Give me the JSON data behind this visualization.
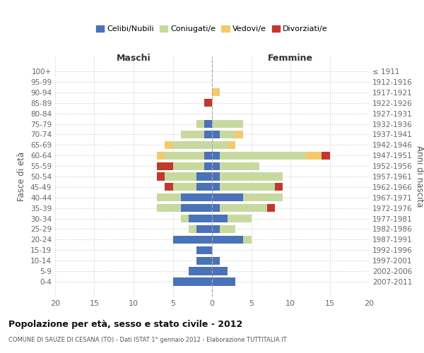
{
  "age_groups": [
    "100+",
    "95-99",
    "90-94",
    "85-89",
    "80-84",
    "75-79",
    "70-74",
    "65-69",
    "60-64",
    "55-59",
    "50-54",
    "45-49",
    "40-44",
    "35-39",
    "30-34",
    "25-29",
    "20-24",
    "15-19",
    "10-14",
    "5-9",
    "0-4"
  ],
  "birth_years": [
    "≤ 1911",
    "1912-1916",
    "1917-1921",
    "1922-1926",
    "1927-1931",
    "1932-1936",
    "1937-1941",
    "1942-1946",
    "1947-1951",
    "1952-1956",
    "1957-1961",
    "1962-1966",
    "1967-1971",
    "1972-1976",
    "1977-1981",
    "1982-1986",
    "1987-1991",
    "1992-1996",
    "1997-2001",
    "2002-2006",
    "2007-2011"
  ],
  "male": {
    "celibi": [
      0,
      0,
      0,
      0,
      0,
      1,
      1,
      0,
      1,
      1,
      2,
      2,
      4,
      4,
      3,
      2,
      5,
      2,
      2,
      3,
      5
    ],
    "coniugati": [
      0,
      0,
      0,
      0,
      0,
      1,
      3,
      5,
      5,
      4,
      4,
      3,
      3,
      3,
      1,
      1,
      0,
      0,
      0,
      0,
      0
    ],
    "vedovi": [
      0,
      0,
      0,
      0,
      0,
      0,
      0,
      1,
      1,
      0,
      0,
      0,
      0,
      0,
      0,
      0,
      0,
      0,
      0,
      0,
      0
    ],
    "divorziati": [
      0,
      0,
      0,
      1,
      0,
      0,
      0,
      0,
      0,
      2,
      1,
      1,
      0,
      0,
      0,
      0,
      0,
      0,
      0,
      0,
      0
    ]
  },
  "female": {
    "nubili": [
      0,
      0,
      0,
      0,
      0,
      0,
      1,
      0,
      1,
      1,
      1,
      1,
      4,
      1,
      2,
      1,
      4,
      0,
      1,
      2,
      3
    ],
    "coniugate": [
      0,
      0,
      0,
      0,
      0,
      4,
      2,
      2,
      11,
      5,
      8,
      7,
      5,
      6,
      3,
      2,
      1,
      0,
      0,
      0,
      0
    ],
    "vedove": [
      0,
      0,
      1,
      0,
      0,
      0,
      1,
      1,
      2,
      0,
      0,
      0,
      0,
      0,
      0,
      0,
      0,
      0,
      0,
      0,
      0
    ],
    "divorziate": [
      0,
      0,
      0,
      0,
      0,
      0,
      0,
      0,
      1,
      0,
      0,
      1,
      0,
      1,
      0,
      0,
      0,
      0,
      0,
      0,
      0
    ]
  },
  "colors": {
    "celibi": "#4a72b8",
    "coniugati": "#c8d9a0",
    "vedovi": "#f5c96a",
    "divorziati": "#c0392b"
  },
  "xlim": [
    -20,
    20
  ],
  "xticks": [
    -20,
    -15,
    -10,
    -5,
    0,
    5,
    10,
    15,
    20
  ],
  "xticklabels": [
    "20",
    "15",
    "10",
    "5",
    "0",
    "5",
    "10",
    "15",
    "20"
  ],
  "title_main": "Popolazione per età, sesso e stato civile - 2012",
  "title_sub": "COMUNE DI SAUZE DI CESANA (TO) - Dati ISTAT 1° gennaio 2012 - Elaborazione TUTTITALIA.IT",
  "ylabel_left": "Fasce di età",
  "ylabel_right": "Anni di nascita",
  "label_maschi": "Maschi",
  "label_femmine": "Femmine",
  "legend_labels": [
    "Celibi/Nubili",
    "Coniugati/e",
    "Vedovi/e",
    "Divorziati/e"
  ],
  "background_color": "#ffffff",
  "grid_color": "#cccccc"
}
